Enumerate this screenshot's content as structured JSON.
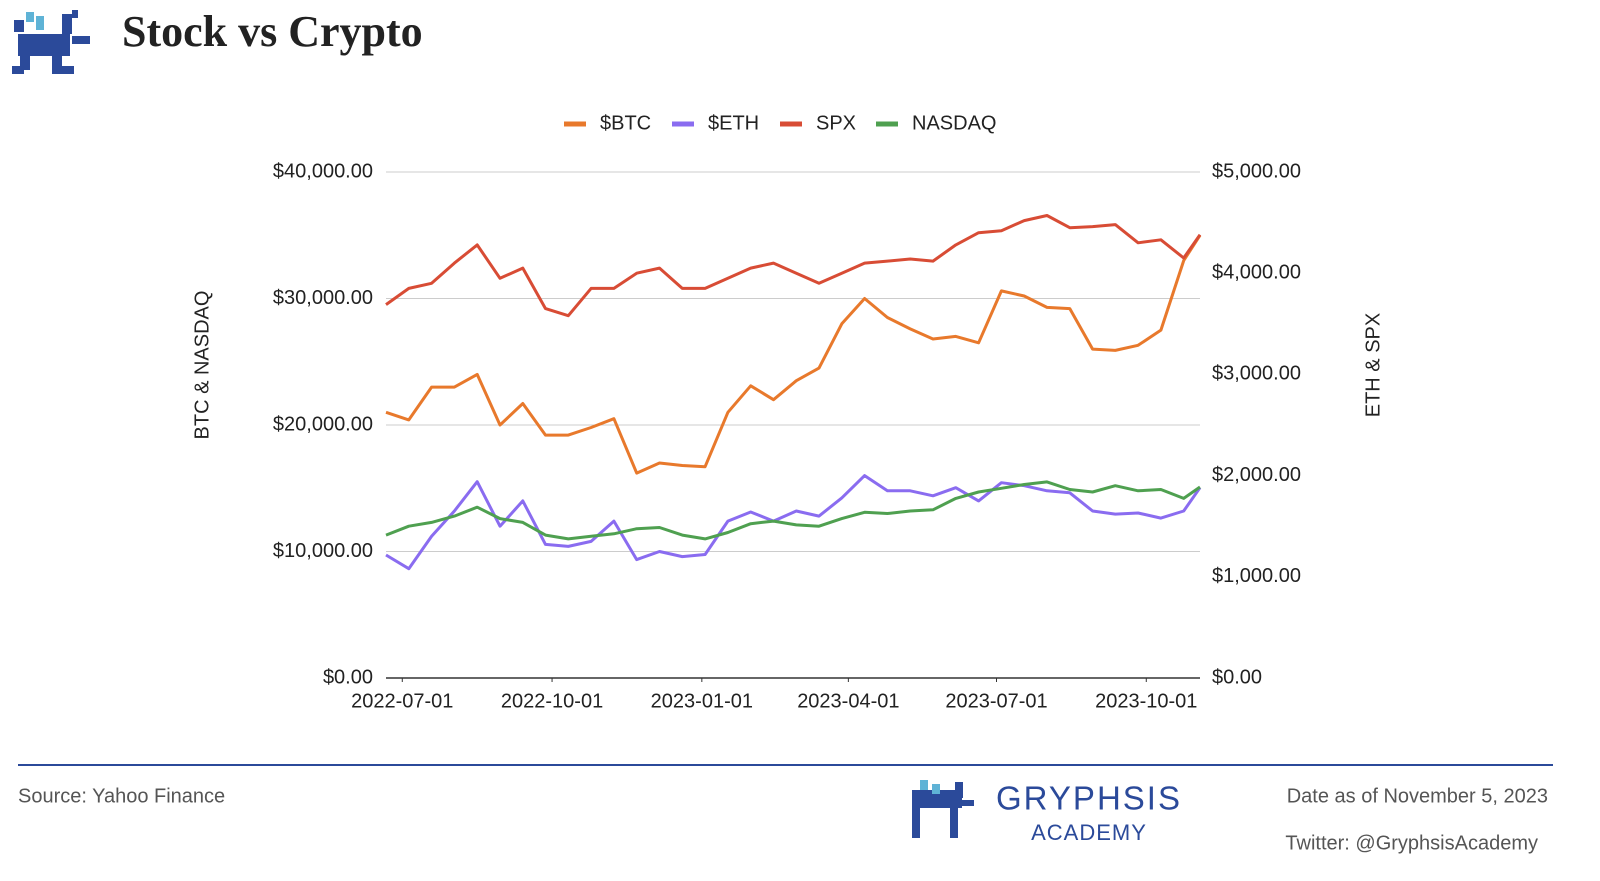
{
  "header": {
    "title": "Stock vs Crypto"
  },
  "chart_data": {
    "type": "line",
    "x": [
      "2022-06-21",
      "2022-07-05",
      "2022-07-19",
      "2022-08-02",
      "2022-08-16",
      "2022-08-30",
      "2022-09-13",
      "2022-09-27",
      "2022-10-11",
      "2022-10-25",
      "2022-11-08",
      "2022-11-22",
      "2022-12-06",
      "2022-12-20",
      "2023-01-03",
      "2023-01-17",
      "2023-01-31",
      "2023-02-14",
      "2023-02-28",
      "2023-03-14",
      "2023-03-28",
      "2023-04-11",
      "2023-04-25",
      "2023-05-09",
      "2023-05-23",
      "2023-06-06",
      "2023-06-20",
      "2023-07-04",
      "2023-07-18",
      "2023-08-01",
      "2023-08-15",
      "2023-08-29",
      "2023-09-12",
      "2023-09-26",
      "2023-10-10",
      "2023-10-24",
      "2023-11-03"
    ],
    "series": [
      {
        "name": "$BTC",
        "color": "#e8792c",
        "axis": "y",
        "values": [
          21000,
          20400,
          23000,
          23000,
          24000,
          20000,
          21700,
          19200,
          19200,
          19800,
          20500,
          16200,
          17000,
          16800,
          16700,
          21000,
          23100,
          22000,
          23500,
          24500,
          28000,
          30000,
          28500,
          27600,
          26800,
          27000,
          26500,
          30600,
          30200,
          29300,
          29200,
          26000,
          25900,
          26300,
          27500,
          33000,
          35000
        ]
      },
      {
        "name": "$ETH",
        "color": "#8a6cf0",
        "axis": "y2",
        "values": [
          1215,
          1080,
          1400,
          1650,
          1940,
          1500,
          1750,
          1320,
          1300,
          1350,
          1550,
          1170,
          1250,
          1200,
          1220,
          1550,
          1640,
          1550,
          1650,
          1600,
          1780,
          2000,
          1850,
          1850,
          1800,
          1880,
          1750,
          1930,
          1900,
          1850,
          1830,
          1650,
          1620,
          1630,
          1580,
          1650,
          1880
        ]
      },
      {
        "name": "SPX",
        "color": "#d84c35",
        "axis": "y2",
        "values": [
          3690,
          3850,
          3900,
          4100,
          4280,
          3950,
          4050,
          3650,
          3580,
          3850,
          3850,
          4000,
          4050,
          3850,
          3850,
          3950,
          4050,
          4100,
          4000,
          3900,
          4000,
          4100,
          4120,
          4140,
          4120,
          4280,
          4400,
          4420,
          4520,
          4570,
          4450,
          4460,
          4480,
          4300,
          4330,
          4150,
          4380
        ]
      },
      {
        "name": "NASDAQ",
        "color": "#4fa050",
        "axis": "y",
        "values": [
          11300,
          12000,
          12300,
          12800,
          13500,
          12600,
          12300,
          11300,
          11000,
          11200,
          11400,
          11800,
          11900,
          11300,
          11000,
          11500,
          12200,
          12400,
          12100,
          12000,
          12600,
          13100,
          13000,
          13200,
          13300,
          14200,
          14700,
          15000,
          15300,
          15500,
          14900,
          14700,
          15200,
          14800,
          14900,
          14200,
          15100
        ]
      }
    ],
    "xlim": [
      "2022-06-21",
      "2023-11-03"
    ],
    "xticks": [
      "2022-07-01",
      "2022-10-01",
      "2023-01-01",
      "2023-04-01",
      "2023-07-01",
      "2023-10-01"
    ],
    "ylabel": "BTC & NASDAQ",
    "y2label": "ETH & SPX",
    "ylim": [
      0,
      40000
    ],
    "yticks": [
      {
        "value": 0,
        "label": "$0.00"
      },
      {
        "value": 10000,
        "label": "$10,000.00"
      },
      {
        "value": 20000,
        "label": "$20,000.00"
      },
      {
        "value": 30000,
        "label": "$30,000.00"
      },
      {
        "value": 40000,
        "label": "$40,000.00"
      }
    ],
    "y2lim": [
      0,
      5000
    ],
    "y2ticks": [
      {
        "value": 0,
        "label": "$0.00"
      },
      {
        "value": 1000,
        "label": "$1,000.00"
      },
      {
        "value": 2000,
        "label": "$2,000.00"
      },
      {
        "value": 3000,
        "label": "$3,000.00"
      },
      {
        "value": 4000,
        "label": "$4,000.00"
      },
      {
        "value": 5000,
        "label": "$5,000.00"
      }
    ],
    "grid": true,
    "legend": "top"
  },
  "footer": {
    "source": "Source: Yahoo Finance",
    "brand": "GRYPHSIS",
    "brand_sub": "ACADEMY",
    "date": "Date as of November 5, 2023",
    "twitter": "Twitter: @GryphsisAcademy"
  }
}
